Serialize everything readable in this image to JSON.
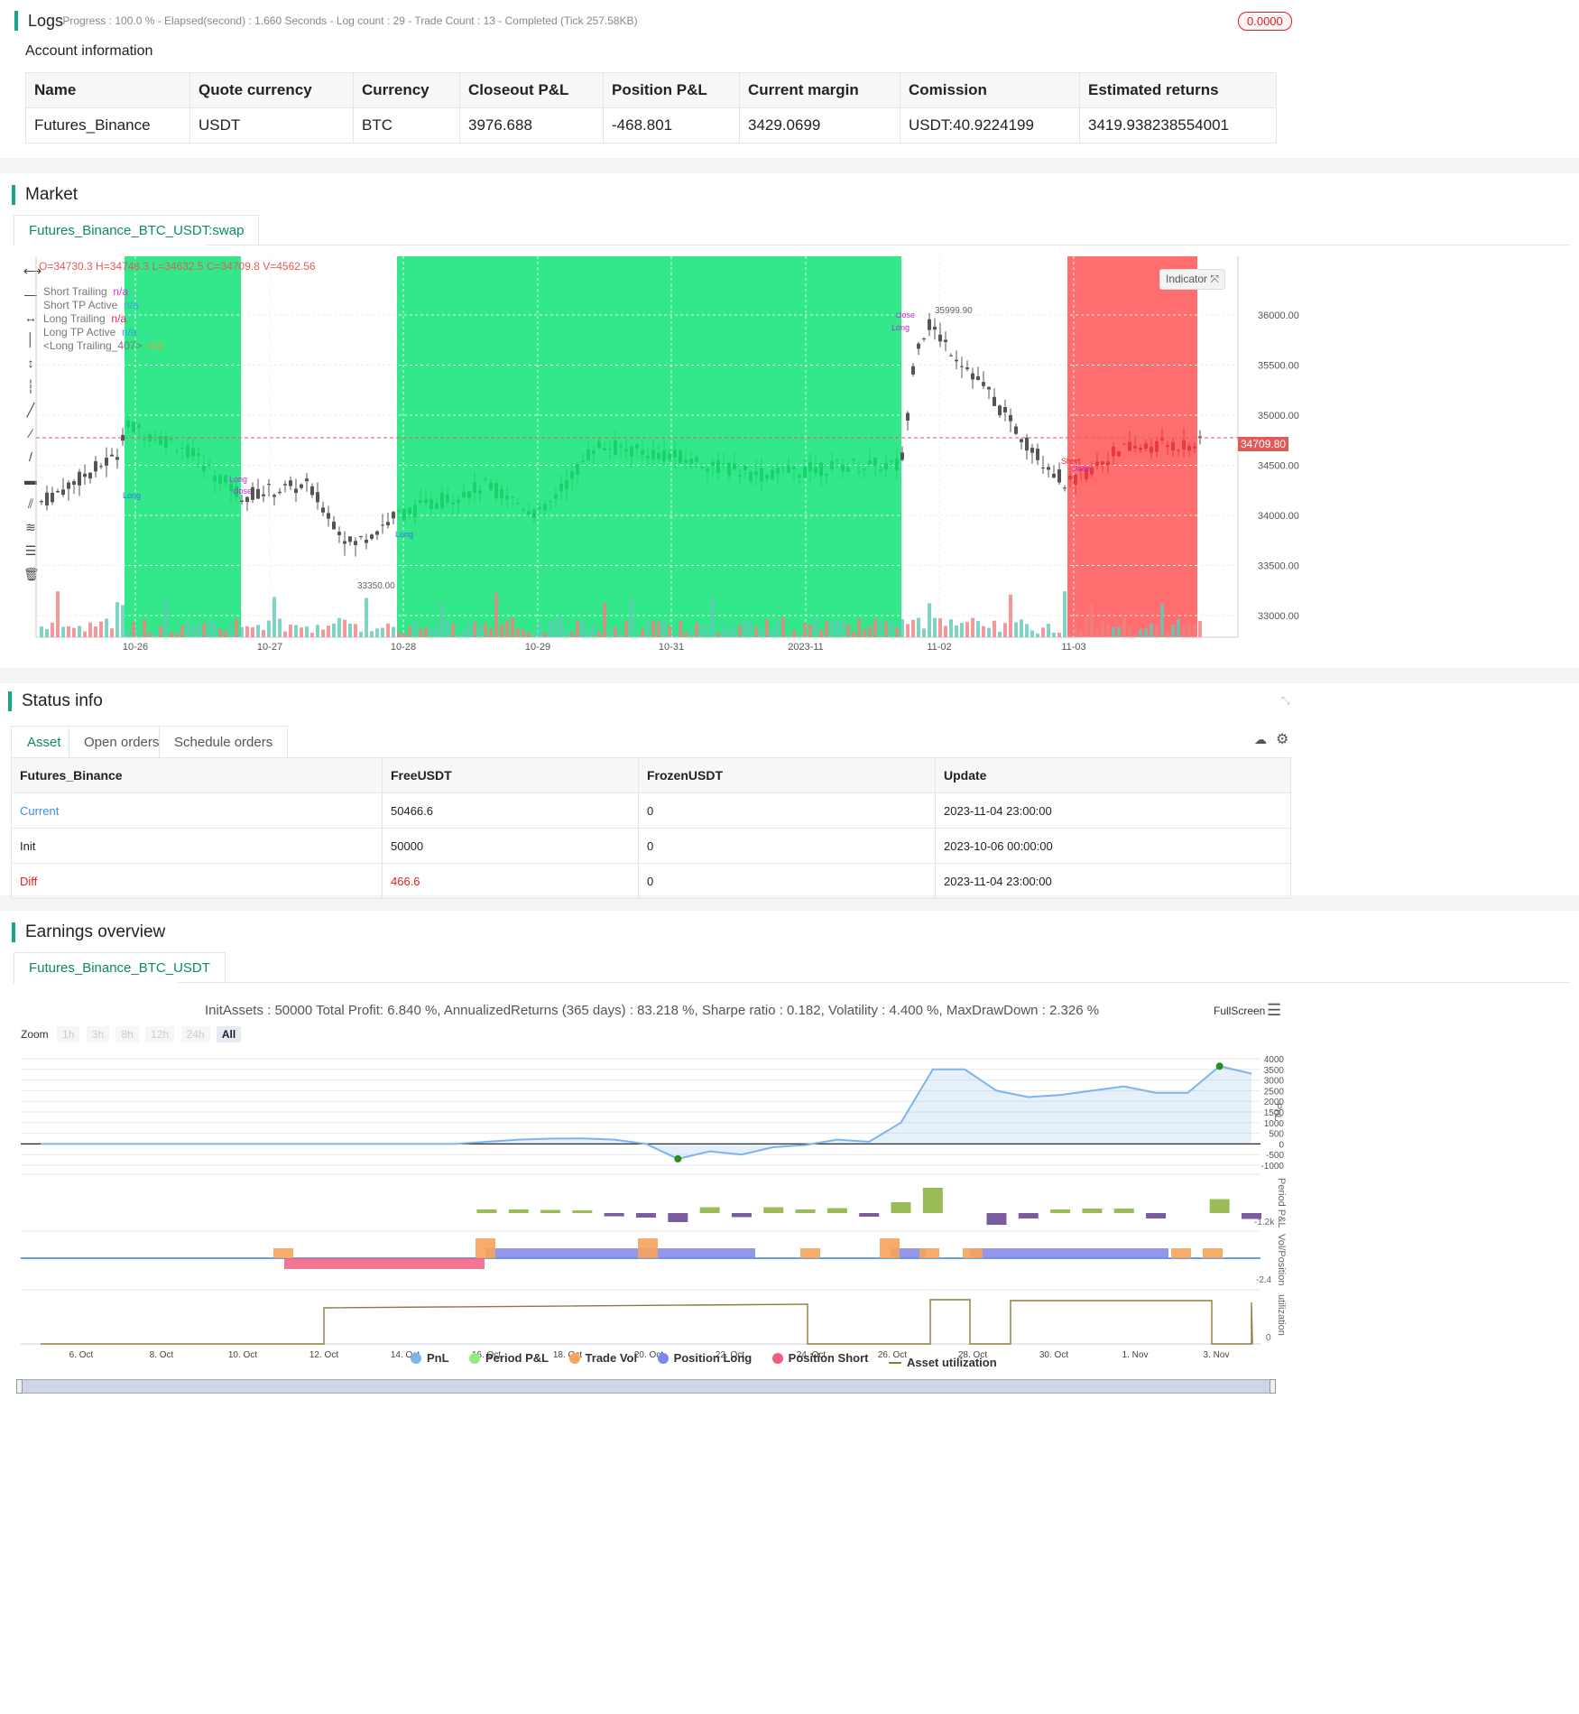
{
  "logs": {
    "title": "Logs",
    "summary": "- Progress : 100.0 % - Elapsed(second) : 1.660  Seconds - Log count : 29 - Trade Count : 13 - Completed (Tick 257.58KB)",
    "badge": "0.0000"
  },
  "account": {
    "title": "Account information",
    "headers": [
      "Name",
      "Quote currency",
      "Currency",
      "Closeout P&L",
      "Position P&L",
      "Current margin",
      "Comission",
      "Estimated returns"
    ],
    "row": [
      "Futures_Binance",
      "USDT",
      "BTC",
      "3976.688",
      "-468.801",
      "3429.0699",
      "USDT:40.9224199",
      "3419.938238554001"
    ]
  },
  "market": {
    "title": "Market",
    "tab": "Futures_Binance_BTC_USDT:swap",
    "ohlc": "O=34730.3 H=34748.3 L=34632.5 C=34709.8 V=4562.56",
    "indicator_button": "Indicator",
    "legend": [
      {
        "name": "Short Trailing",
        "value": "n/a",
        "color": "#d633d6"
      },
      {
        "name": "Short TP Active",
        "value": "n/a",
        "color": "#3aa0e8"
      },
      {
        "name": "Long Trailing",
        "value": "n/a",
        "color": "#e0245e"
      },
      {
        "name": "Long TP Active",
        "value": "n/a",
        "color": "#3aa0e8"
      },
      {
        "name": "<Long Trailing_407>",
        "value": "n/a",
        "color": "#e6a23c"
      }
    ],
    "price_ticks": [
      "36000.00",
      "35500.00",
      "35000.00",
      "34500.00",
      "34000.00",
      "33500.00",
      "33000.00"
    ],
    "current_price": "34709.80",
    "date_ticks": [
      "10-26",
      "10-27",
      "10-28",
      "10-29",
      "10-31",
      "2023-11",
      "11-02",
      "11-03"
    ],
    "high_label": "35999.90",
    "low_label": "33350.00",
    "annotations": [
      "Long",
      "close",
      "Long",
      "close",
      "Long",
      "close",
      "Long",
      "Short",
      "Long",
      "Long"
    ]
  },
  "status": {
    "title": "Status info",
    "tabs": [
      "Asset",
      "Open orders",
      "Schedule orders"
    ],
    "headers": [
      "Futures_Binance",
      "FreeUSDT",
      "FrozenUSDT",
      "Update"
    ],
    "rows": [
      {
        "label": "Current",
        "free": "50466.6",
        "frozen": "0",
        "update": "2023-11-04 23:00:00",
        "color": "#3a8ee6"
      },
      {
        "label": "Init",
        "free": "50000",
        "frozen": "0",
        "update": "2023-10-06 00:00:00",
        "color": "#222222"
      },
      {
        "label": "Diff",
        "free": "466.6",
        "frozen": "0",
        "update": "2023-11-04 23:00:00",
        "color": "#e02020"
      }
    ]
  },
  "earnings": {
    "title": "Earnings overview",
    "tab": "Futures_Binance_BTC_USDT",
    "summary": "InitAssets : 50000 Total Profit: 6.840 %, AnnualizedReturns (365 days) : 83.218 %, Sharpe ratio : 0.182, Volatility : 4.400 %, MaxDrawDown : 2.326 %",
    "fullscreen": "FullScreen",
    "zoom_label": "Zoom",
    "zoom_buttons": [
      "1h",
      "3h",
      "8h",
      "12h",
      "24h",
      "All"
    ],
    "pnl_ticks": [
      "4000",
      "3500",
      "3000",
      "2500",
      "2000",
      "1500",
      "1000",
      "500",
      "0",
      "-500",
      "-1000"
    ],
    "axis_labels": [
      "PnL",
      "Period P&L",
      "Vol/Position",
      "utilization"
    ],
    "period_tick": "-1.2k",
    "vol_tick": "-2.4",
    "util_tick": "0",
    "date_ticks": [
      "6. Oct",
      "8. Oct",
      "10. Oct",
      "12. Oct",
      "14. Oct",
      "16. Oct",
      "18. Oct",
      "20. Oct",
      "22. Oct",
      "24. Oct",
      "26. Oct",
      "28. Oct",
      "30. Oct",
      "1. Nov",
      "3. Nov"
    ],
    "legend": [
      {
        "name": "PnL",
        "color": "#7cb5ec"
      },
      {
        "name": "Period P&L",
        "color": "#90ed7d"
      },
      {
        "name": "Trade Vol",
        "color": "#f7a35c"
      },
      {
        "name": "Position Long",
        "color": "#8085e9"
      },
      {
        "name": "Position Short",
        "color": "#f15c80"
      },
      {
        "name": "Asset utilization",
        "color": "#8d7a3a"
      }
    ],
    "chart_data": {
      "type": "line",
      "series": [
        {
          "name": "PnL",
          "values": [
            0,
            0,
            0,
            0,
            0,
            0,
            0,
            0,
            0,
            0,
            0,
            0,
            0,
            0,
            100,
            200,
            250,
            260,
            200,
            0,
            -700,
            -350,
            -500,
            -150,
            -50,
            200,
            100,
            1000,
            3500,
            3500,
            2500,
            2200,
            2300,
            2500,
            2700,
            2400,
            2400,
            3650,
            3300
          ]
        }
      ]
    }
  }
}
